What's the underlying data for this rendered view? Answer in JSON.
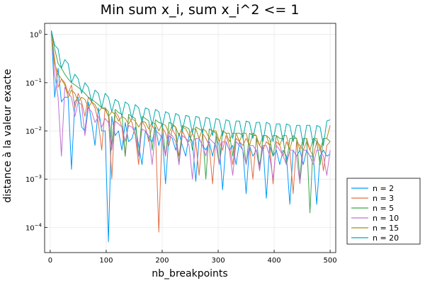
{
  "chart_data": {
    "type": "line",
    "title": "Min sum x_i, sum x_i^2 <= 1",
    "xlabel": "nb_breakpoints",
    "ylabel": "distance à la valeur exacte",
    "xlim": [
      -10,
      510
    ],
    "ylim": [
      3e-05,
      1.7
    ],
    "yscale": "log",
    "grid": true,
    "legend_position": "bottom-right-outside",
    "x_ticks": [
      {
        "value": 0,
        "label": "0"
      },
      {
        "value": 100,
        "label": "100"
      },
      {
        "value": 200,
        "label": "200"
      },
      {
        "value": 300,
        "label": "300"
      },
      {
        "value": 400,
        "label": "400"
      },
      {
        "value": 500,
        "label": "500"
      }
    ],
    "y_ticks": [
      {
        "value": 0.0001,
        "base": "10",
        "exp": "−4"
      },
      {
        "value": 0.001,
        "base": "10",
        "exp": "−3"
      },
      {
        "value": 0.01,
        "base": "10",
        "exp": "−2"
      },
      {
        "value": 0.1,
        "base": "10",
        "exp": "−1"
      },
      {
        "value": 1,
        "base": "10",
        "exp": "0"
      }
    ],
    "x": [
      2,
      8,
      14,
      20,
      26,
      32,
      38,
      44,
      50,
      56,
      62,
      68,
      74,
      80,
      86,
      92,
      98,
      104,
      110,
      116,
      122,
      128,
      134,
      140,
      146,
      152,
      158,
      164,
      170,
      176,
      182,
      188,
      194,
      200,
      206,
      212,
      218,
      224,
      230,
      236,
      242,
      248,
      254,
      260,
      266,
      272,
      278,
      284,
      290,
      296,
      302,
      308,
      314,
      320,
      326,
      332,
      338,
      344,
      350,
      356,
      362,
      368,
      374,
      380,
      386,
      392,
      398,
      404,
      410,
      416,
      422,
      428,
      434,
      440,
      446,
      452,
      458,
      464,
      470,
      476,
      482,
      488,
      494,
      500
    ],
    "series": [
      {
        "name": "n = 2",
        "color": "#009AFA",
        "values": [
          1.2,
          0.05,
          0.2,
          0.04,
          0.05,
          0.05,
          0.0016,
          0.04,
          0.05,
          0.012,
          0.01,
          0.04,
          0.015,
          0.005,
          0.03,
          0.01,
          0.01,
          5e-05,
          0.02,
          0.008,
          0.01,
          0.004,
          0.015,
          0.006,
          0.007,
          0.012,
          0.005,
          0.002,
          0.01,
          0.007,
          0.006,
          0.012,
          0.005,
          0.009,
          0.0008,
          0.008,
          0.007,
          0.004,
          0.009,
          0.005,
          0.003,
          0.008,
          0.006,
          0.0009,
          0.007,
          0.005,
          0.004,
          0.006,
          0.003,
          0.007,
          0.005,
          0.0006,
          0.006,
          0.004,
          0.005,
          0.002,
          0.006,
          0.004,
          0.0005,
          0.005,
          0.003,
          0.004,
          0.002,
          0.005,
          0.0004,
          0.005,
          0.003,
          0.004,
          0.002,
          0.004,
          0.003,
          0.0003,
          0.004,
          0.003,
          0.004,
          0.002,
          0.004,
          0.003,
          0.003,
          0.0003,
          0.003,
          0.004,
          0.003,
          0.0033
        ]
      },
      {
        "name": "n = 3",
        "color": "#E26F46",
        "values": [
          1.1,
          0.3,
          0.08,
          0.12,
          0.1,
          0.06,
          0.09,
          0.03,
          0.06,
          0.04,
          0.02,
          0.05,
          0.04,
          0.03,
          0.015,
          0.004,
          0.03,
          0.02,
          0.001,
          0.025,
          0.02,
          0.012,
          0.003,
          0.02,
          0.015,
          0.008,
          0.002,
          0.016,
          0.012,
          0.006,
          0.013,
          0.01,
          8e-05,
          0.012,
          0.009,
          0.005,
          0.011,
          0.008,
          0.003,
          0.01,
          0.007,
          0.006,
          0.009,
          0.006,
          0.0012,
          0.009,
          0.007,
          0.005,
          0.0008,
          0.008,
          0.006,
          0.004,
          0.008,
          0.005,
          0.002,
          0.007,
          0.006,
          0.005,
          0.007,
          0.005,
          0.001,
          0.007,
          0.005,
          0.004,
          0.006,
          0.005,
          0.0008,
          0.006,
          0.005,
          0.003,
          0.006,
          0.004,
          0.0005,
          0.006,
          0.005,
          0.004,
          0.006,
          0.004,
          0.003,
          0.006,
          0.005,
          0.0015,
          0.005,
          0.006
        ]
      },
      {
        "name": "n = 5",
        "color": "#3DA44E",
        "values": [
          1.2,
          0.5,
          0.25,
          0.2,
          0.15,
          0.12,
          0.1,
          0.09,
          0.08,
          0.07,
          0.06,
          0.05,
          0.045,
          0.04,
          0.035,
          0.03,
          0.03,
          0.025,
          0.005,
          0.028,
          0.024,
          0.022,
          0.003,
          0.022,
          0.02,
          0.018,
          0.003,
          0.02,
          0.018,
          0.016,
          0.004,
          0.017,
          0.015,
          0.014,
          0.003,
          0.015,
          0.014,
          0.012,
          0.002,
          0.013,
          0.012,
          0.011,
          0.004,
          0.012,
          0.011,
          0.01,
          0.001,
          0.011,
          0.01,
          0.009,
          0.002,
          0.01,
          0.009,
          0.009,
          0.003,
          0.009,
          0.009,
          0.008,
          0.002,
          0.009,
          0.008,
          0.008,
          0.0015,
          0.008,
          0.008,
          0.007,
          0.003,
          0.008,
          0.007,
          0.007,
          0.002,
          0.007,
          0.007,
          0.007,
          0.001,
          0.007,
          0.007,
          0.0002,
          0.007,
          0.006,
          0.002,
          0.007,
          0.007,
          0.006
        ]
      },
      {
        "name": "n = 10",
        "color": "#C270D1",
        "values": [
          1.1,
          0.15,
          0.05,
          0.003,
          0.08,
          0.06,
          0.05,
          0.02,
          0.04,
          0.035,
          0.008,
          0.03,
          0.025,
          0.015,
          0.02,
          0.012,
          0.018,
          0.015,
          0.004,
          0.016,
          0.014,
          0.012,
          0.006,
          0.013,
          0.012,
          0.009,
          0.003,
          0.011,
          0.01,
          0.008,
          0.002,
          0.01,
          0.009,
          0.007,
          0.003,
          0.009,
          0.008,
          0.006,
          0.002,
          0.008,
          0.007,
          0.005,
          0.001,
          0.007,
          0.007,
          0.005,
          0.003,
          0.007,
          0.006,
          0.005,
          0.002,
          0.006,
          0.006,
          0.004,
          0.0012,
          0.006,
          0.005,
          0.004,
          0.002,
          0.005,
          0.005,
          0.004,
          0.0015,
          0.005,
          0.005,
          0.003,
          0.001,
          0.005,
          0.004,
          0.003,
          0.002,
          0.004,
          0.004,
          0.003,
          0.0008,
          0.004,
          0.004,
          0.003,
          0.002,
          0.004,
          0.004,
          0.003,
          0.0012,
          0.004
        ]
      },
      {
        "name": "n = 15",
        "color": "#AC8D18",
        "values": [
          1.0,
          0.25,
          0.15,
          0.12,
          0.09,
          0.05,
          0.07,
          0.06,
          0.04,
          0.05,
          0.045,
          0.03,
          0.04,
          0.035,
          0.025,
          0.03,
          0.028,
          0.02,
          0.025,
          0.022,
          0.016,
          0.02,
          0.018,
          0.014,
          0.018,
          0.016,
          0.012,
          0.016,
          0.015,
          0.011,
          0.015,
          0.014,
          0.01,
          0.014,
          0.013,
          0.009,
          0.013,
          0.012,
          0.008,
          0.012,
          0.011,
          0.008,
          0.011,
          0.011,
          0.007,
          0.011,
          0.01,
          0.007,
          0.01,
          0.01,
          0.006,
          0.01,
          0.009,
          0.006,
          0.009,
          0.009,
          0.006,
          0.009,
          0.009,
          0.005,
          0.009,
          0.008,
          0.005,
          0.008,
          0.008,
          0.005,
          0.008,
          0.008,
          0.005,
          0.008,
          0.008,
          0.004,
          0.008,
          0.007,
          0.004,
          0.007,
          0.007,
          0.004,
          0.007,
          0.007,
          0.004,
          0.007,
          0.007,
          0.013
        ]
      },
      {
        "name": "n = 20",
        "color": "#00A9AD",
        "values": [
          1.2,
          0.6,
          0.5,
          0.2,
          0.3,
          0.25,
          0.1,
          0.15,
          0.12,
          0.06,
          0.1,
          0.08,
          0.04,
          0.07,
          0.06,
          0.03,
          0.06,
          0.05,
          0.025,
          0.045,
          0.04,
          0.02,
          0.04,
          0.035,
          0.018,
          0.035,
          0.03,
          0.015,
          0.03,
          0.028,
          0.013,
          0.028,
          0.025,
          0.012,
          0.025,
          0.023,
          0.011,
          0.023,
          0.021,
          0.01,
          0.021,
          0.02,
          0.009,
          0.02,
          0.019,
          0.009,
          0.019,
          0.018,
          0.008,
          0.018,
          0.017,
          0.008,
          0.017,
          0.016,
          0.007,
          0.016,
          0.016,
          0.007,
          0.016,
          0.015,
          0.007,
          0.015,
          0.015,
          0.006,
          0.015,
          0.014,
          0.006,
          0.014,
          0.014,
          0.006,
          0.014,
          0.013,
          0.006,
          0.013,
          0.013,
          0.005,
          0.013,
          0.013,
          0.005,
          0.013,
          0.012,
          0.005,
          0.016,
          0.017
        ]
      }
    ]
  }
}
